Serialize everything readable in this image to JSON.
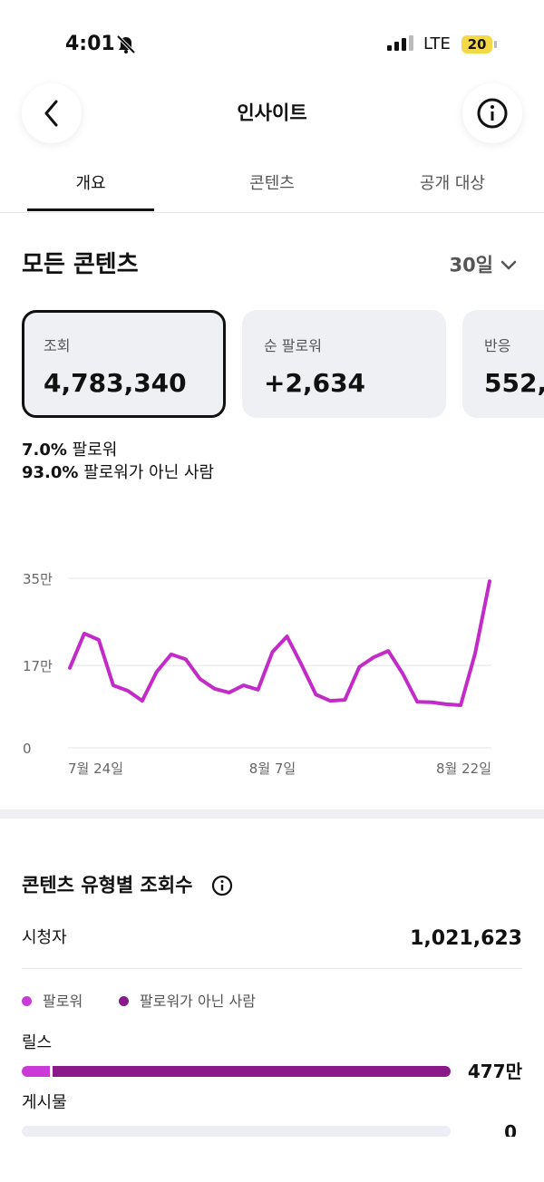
{
  "status_bar": {
    "time": "4:01",
    "network": "LTE",
    "battery": "20"
  },
  "header": {
    "title": "인사이트"
  },
  "tabs": [
    "개요",
    "콘텐츠",
    "공개 대상"
  ],
  "overview": {
    "title": "모든 콘텐츠",
    "period": "30일",
    "cards": [
      {
        "label": "조회",
        "value": "4,783,340"
      },
      {
        "label": "순 팔로워",
        "value": "+2,634"
      },
      {
        "label": "반응",
        "value": "552,"
      }
    ],
    "breakdown": [
      {
        "percent": "7.0%",
        "label": "팔로워"
      },
      {
        "percent": "93.0%",
        "label": "팔로워가 아닌 사람"
      }
    ]
  },
  "chart_data": {
    "type": "line",
    "color": "#c32bc8",
    "categories": [
      "7월 24일",
      null,
      null,
      null,
      null,
      null,
      null,
      null,
      null,
      null,
      null,
      null,
      null,
      null,
      "8월 7일",
      null,
      null,
      null,
      null,
      null,
      null,
      null,
      null,
      null,
      null,
      null,
      null,
      null,
      null,
      "8월 22일"
    ],
    "values": [
      165000,
      236000,
      223000,
      129000,
      118000,
      97000,
      157000,
      193000,
      183000,
      142000,
      122000,
      114000,
      129000,
      120000,
      198000,
      230000,
      172000,
      110000,
      97000,
      99000,
      167000,
      187000,
      200000,
      153000,
      95000,
      94000,
      90000,
      88000,
      195000,
      344000
    ],
    "ylim": [
      0,
      350000
    ],
    "yticks": [
      0,
      {
        "value": 170000,
        "label": "17만"
      },
      {
        "value": 350000,
        "label": "35만"
      }
    ],
    "grid": true
  },
  "content_type": {
    "title": "콘텐츠 유형별 조회수",
    "audience_label": "시청자",
    "audience_value": "1,021,623",
    "legend": [
      "팔로워",
      "팔로워가 아닌 사람"
    ],
    "rows": [
      {
        "label": "릴스",
        "value": "477만"
      },
      {
        "label": "게시물",
        "value": "0"
      }
    ]
  }
}
